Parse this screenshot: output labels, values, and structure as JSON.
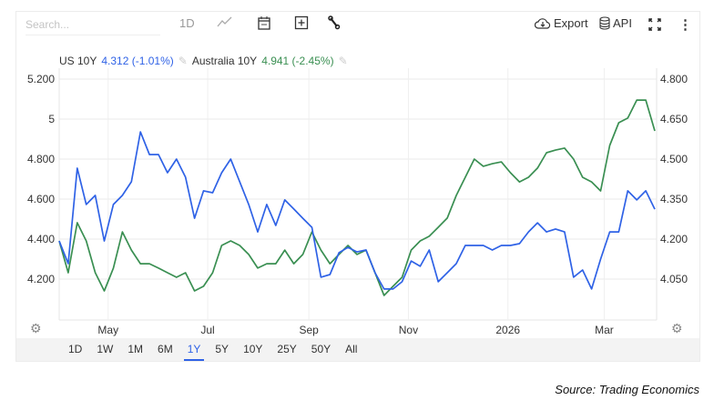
{
  "toolbar": {
    "search_placeholder": "Search...",
    "interval_label": "1D",
    "export_label": "Export",
    "api_label": "API",
    "icons": [
      "line-chart-icon",
      "calendar-icon",
      "plus-square-icon",
      "wrench-icon",
      "cloud-download-icon",
      "database-icon",
      "fullscreen-icon",
      "kebab-menu-icon"
    ]
  },
  "legend": [
    {
      "name": "US 10Y",
      "value": "4.312 (-1.01%)",
      "color": "#2f62e6"
    },
    {
      "name": "Australia 10Y",
      "value": "4.941 (-2.45%)",
      "color": "#3a8f52"
    }
  ],
  "ranges": {
    "items": [
      "1D",
      "1W",
      "1M",
      "6M",
      "1Y",
      "5Y",
      "10Y",
      "25Y",
      "50Y",
      "All"
    ],
    "active": "1Y"
  },
  "source": "Source: Trading Economics",
  "chart_data": {
    "type": "line",
    "title": "",
    "x_ticks": [
      {
        "label": "May",
        "day": 30
      },
      {
        "label": "Jul",
        "day": 91
      },
      {
        "label": "Sep",
        "day": 153
      },
      {
        "label": "Nov",
        "day": 214
      },
      {
        "label": "2026",
        "day": 275
      },
      {
        "label": "Mar",
        "day": 334
      }
    ],
    "x_range_days": [
      0,
      365
    ],
    "left_axis": {
      "ticks": [
        "5.200",
        "5",
        "4.800",
        "4.600",
        "4.400",
        "4.200"
      ],
      "tick_values": [
        5.2,
        5.0,
        4.8,
        4.6,
        4.4,
        4.2
      ],
      "range": [
        4.0,
        5.2
      ]
    },
    "right_axis": {
      "ticks": [
        "4.800",
        "4.650",
        "4.500",
        "4.350",
        "4.200",
        "4.050"
      ],
      "tick_values": [
        4.8,
        4.65,
        4.5,
        4.35,
        4.2,
        4.05
      ],
      "range": [
        3.95,
        4.8
      ]
    },
    "grid": true,
    "series": [
      {
        "name": "US 10Y",
        "axis": "right",
        "color": "#2f62e6",
        "values": [
          4.193,
          4.108,
          4.466,
          4.33,
          4.364,
          4.193,
          4.33,
          4.364,
          4.415,
          4.602,
          4.517,
          4.517,
          4.449,
          4.5,
          4.432,
          4.278,
          4.381,
          4.374,
          4.449,
          4.5,
          4.415,
          4.33,
          4.227,
          4.33,
          4.251,
          4.347,
          4.313,
          4.278,
          4.244,
          4.057,
          4.067,
          4.149,
          4.169,
          4.152,
          4.159,
          4.074,
          4.013,
          4.013,
          4.04,
          4.118,
          4.098,
          4.159,
          4.04,
          4.074,
          4.108,
          4.176,
          4.176,
          4.176,
          4.159,
          4.176,
          4.176,
          4.183,
          4.227,
          4.261,
          4.227,
          4.238,
          4.227,
          4.057,
          4.084,
          4.013,
          4.125,
          4.227,
          4.227,
          4.381,
          4.347,
          4.381,
          4.312
        ]
      },
      {
        "name": "Australia 10Y",
        "axis": "left",
        "color": "#3a8f52",
        "values": [
          4.391,
          4.232,
          4.482,
          4.391,
          4.232,
          4.141,
          4.255,
          4.436,
          4.345,
          4.277,
          4.277,
          4.255,
          4.232,
          4.209,
          4.232,
          4.141,
          4.164,
          4.232,
          4.368,
          4.391,
          4.368,
          4.323,
          4.255,
          4.277,
          4.277,
          4.345,
          4.277,
          4.323,
          4.436,
          4.345,
          4.277,
          4.323,
          4.368,
          4.323,
          4.345,
          4.232,
          4.118,
          4.164,
          4.209,
          4.345,
          4.391,
          4.414,
          4.459,
          4.505,
          4.618,
          4.709,
          4.8,
          4.764,
          4.777,
          4.786,
          4.732,
          4.686,
          4.709,
          4.755,
          4.832,
          4.845,
          4.855,
          4.8,
          4.709,
          4.686,
          4.641,
          4.868,
          4.982,
          5.005,
          5.095,
          5.095,
          4.941
        ]
      }
    ]
  }
}
